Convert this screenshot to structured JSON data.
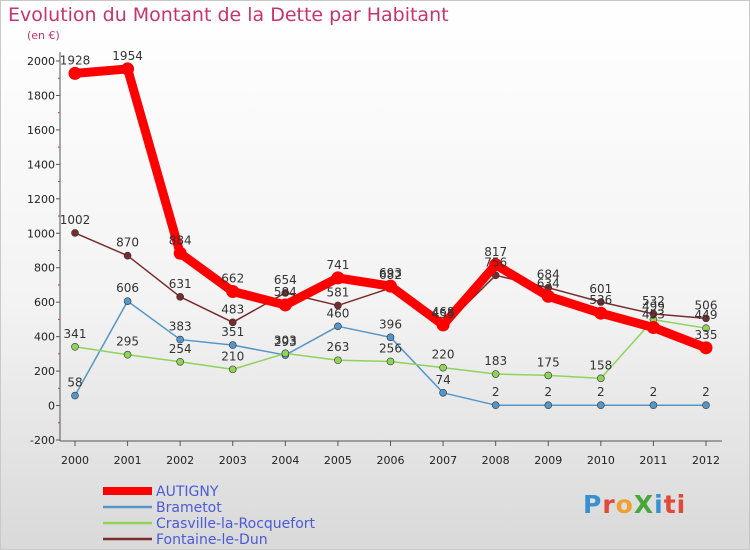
{
  "title": "Evolution du Montant de la Dette par Habitant",
  "subtitle": "(en €)",
  "logo_text": "ProXiti",
  "chart_data": {
    "type": "line",
    "categories": [
      "2000",
      "2001",
      "2002",
      "2003",
      "2004",
      "2005",
      "2006",
      "2007",
      "2008",
      "2009",
      "2010",
      "2011",
      "2012"
    ],
    "y_ticks": [
      "-200",
      "0",
      "200",
      "400",
      "600",
      "800",
      "1000",
      "1200",
      "1400",
      "1600",
      "1800",
      "2000"
    ],
    "ylim": [
      -200,
      2000
    ],
    "grid": false,
    "legend_position": "bottom-left",
    "series": [
      {
        "name": "AUTIGNY",
        "color": "#ff0000",
        "values": [
          1928,
          1954,
          884,
          662,
          584,
          741,
          693,
          468,
          817,
          634,
          536,
          453,
          335
        ]
      },
      {
        "name": "Brametot",
        "color": "#5596c9",
        "values": [
          58,
          606,
          383,
          351,
          293,
          460,
          396,
          74,
          2,
          2,
          2,
          2,
          2
        ]
      },
      {
        "name": "Crasville-la-Rocquefort",
        "color": "#8fd35a",
        "values": [
          341,
          295,
          254,
          210,
          303,
          263,
          256,
          220,
          183,
          175,
          158,
          499,
          449
        ]
      },
      {
        "name": "Fontaine-le-Dun",
        "color": "#7a2b2b",
        "values": [
          1002,
          870,
          631,
          483,
          654,
          581,
          682,
          455,
          756,
          684,
          601,
          532,
          506
        ]
      }
    ]
  }
}
